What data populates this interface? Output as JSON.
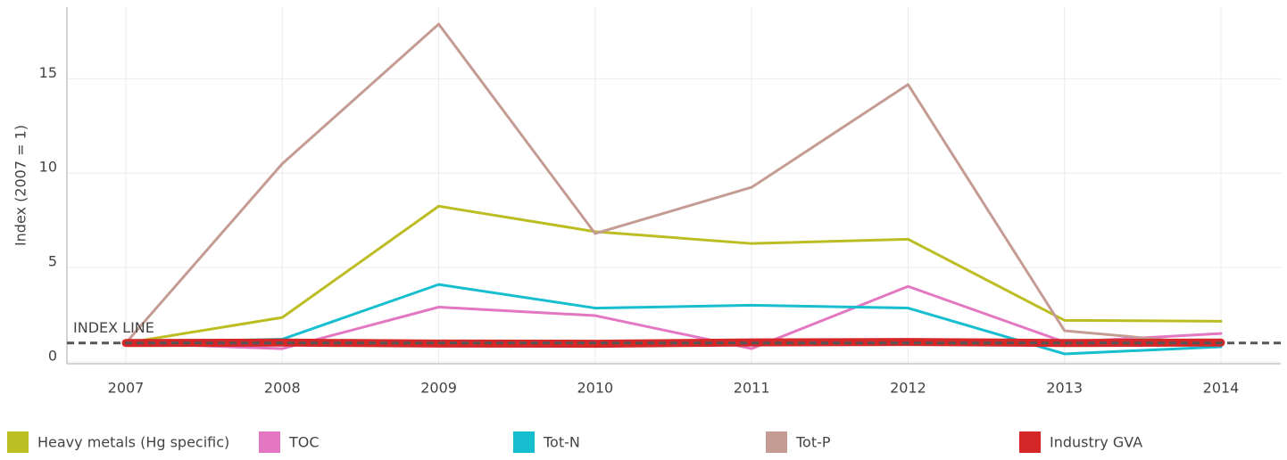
{
  "chart_data": {
    "type": "line",
    "y_label": "Index (2007 = 1)",
    "categories": [
      "2007",
      "2008",
      "2009",
      "2010",
      "2011",
      "2012",
      "2013",
      "2014"
    ],
    "series": [
      {
        "name": "Heavy metals (Hg specific)",
        "color": "#bcbd22",
        "values": [
          1,
          2.35,
          8.25,
          6.9,
          6.27,
          6.5,
          2.2,
          2.15
        ]
      },
      {
        "name": "TOC",
        "color": "#e377c2",
        "values": [
          1,
          0.7,
          2.9,
          2.45,
          0.7,
          4.0,
          1.05,
          1.5
        ]
      },
      {
        "name": "Tot-N",
        "color": "#17becf",
        "values": [
          1,
          1.2,
          4.1,
          2.85,
          3.0,
          2.85,
          0.42,
          0.8
        ]
      },
      {
        "name": "Tot-P",
        "color": "#c49c94",
        "values": [
          1,
          10.5,
          17.9,
          6.8,
          9.25,
          14.7,
          1.65,
          0.9
        ]
      },
      {
        "name": "Industry GVA",
        "color": "#d62728",
        "values": [
          1,
          1.02,
          0.97,
          0.96,
          1.03,
          1.05,
          1.0,
          1.02
        ]
      }
    ],
    "index_line": {
      "label": "INDEX LINE",
      "value": 1
    },
    "ylim": [
      -0.1,
      18.8
    ],
    "yticks": [
      0,
      5,
      10,
      15
    ],
    "grid": true
  }
}
